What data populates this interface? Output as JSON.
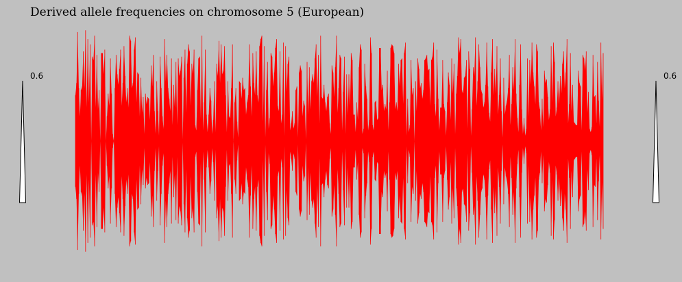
{
  "title": "Derived allele frequencies on chromosome 5 (European)",
  "scale_left_label": "0.6",
  "scale_right_label": "0.6",
  "colors": {
    "background": "#c0c0c0",
    "fill": "#ff0000",
    "scale_fill": "#ffffff"
  },
  "chart_data": {
    "type": "area",
    "title": "Derived allele frequencies on chromosome 5 (European)",
    "ylim": [
      0,
      0.6
    ],
    "symmetric": true,
    "scale_marker_value": 0.6,
    "series": [
      {
        "values": [
          0.26,
          0.33,
          0.62,
          0.3,
          0.14,
          0.29,
          0.31,
          0.51,
          0.3,
          0.63,
          0.19,
          0.58,
          0.22,
          0.55,
          0.0,
          0.48,
          0.46,
          0.6,
          0.19,
          0.49,
          0.18,
          0.29,
          0.0,
          0.5,
          0.5,
          0.38,
          0.52,
          0.0,
          0.14,
          0.27,
          0.2,
          0.47,
          0.27,
          0.04,
          0.0,
          0.3,
          0.49,
          0.38,
          0.32,
          0.41,
          0.52,
          0.2,
          0.33,
          0.54,
          0.37,
          0.22,
          0.3,
          0.19,
          0.6,
          0.57,
          0.3,
          0.33,
          0.52,
          0.59,
          0.22,
          0.39,
          0.38,
          0.14,
          0.36,
          0.16,
          0.25,
          0.04,
          0.27,
          0.21,
          0.25,
          0.24,
          0.12,
          0.43,
          0.31,
          0.49,
          0.17,
          0.04,
          0.34,
          0.17,
          0.03,
          0.48,
          0.3,
          0.14,
          0.07,
          0.58,
          0.34,
          0.49,
          0.3,
          0.24,
          0.17,
          0.47,
          0.09,
          0.32,
          0.19,
          0.45,
          0.09,
          0.47,
          0.37,
          0.4,
          0.48,
          0.01,
          0.36,
          0.52,
          0.16,
          0.44,
          0.55,
          0.51,
          0.2,
          0.44,
          0.38,
          0.52,
          0.09,
          0.06,
          0.29,
          0.47,
          0.48,
          0.12,
          0.6,
          0.06,
          0.22,
          0.52,
          0.15,
          0.05,
          0.15,
          0.3,
          0.23,
          0.04,
          0.12,
          0.34,
          0.05,
          0.44,
          0.37,
          0.57,
          0.33,
          0.55,
          0.38,
          0.4,
          0.54,
          0.26,
          0.05,
          0.34,
          0.14,
          0.13,
          0.3,
          0.55,
          0.0,
          0.22,
          0.3,
          0.11,
          0.02,
          0.34,
          0.33,
          0.24,
          0.36,
          0.29,
          0.3,
          0.15,
          0.22,
          0.26,
          0.55,
          0.31,
          0.14,
          0.5,
          0.33,
          0.26,
          0.51,
          0.26,
          0.22,
          0.54,
          0.58,
          0.6,
          0.11,
          0.54,
          0.02,
          0.29,
          0.45,
          0.07,
          0.13,
          0.5,
          0.48,
          0.31,
          0.39,
          0.53,
          0.58,
          0.2,
          0.17,
          0.51,
          0.1,
          0.15,
          0.56,
          0.03,
          0.54,
          0.28,
          0.44,
          0.48,
          0.06,
          0.1,
          0.17,
          0.07,
          0.1,
          0.29,
          0.31,
          0.02,
          0.39,
          0.43,
          0.4,
          0.14,
          0.23,
          0.2,
          0.01,
          0.45,
          0.15,
          0.42,
          0.18,
          0.34,
          0.38,
          0.33,
          0.47,
          0.55,
          0.25,
          0.49,
          0.1,
          0.6,
          0.25,
          0.24,
          0.32,
          0.22,
          0.17,
          0.25,
          0.27,
          0.1,
          0.04,
          0.43,
          0.39,
          0.25,
          0.42,
          0.6,
          0.16,
          0.3,
          0.49,
          0.47,
          0.06,
          0.28,
          0.48,
          0.04,
          0.38,
          0.15,
          0.38,
          0.2,
          0.5,
          0.46,
          0.15,
          0.15,
          0.05,
          0.22,
          0.12,
          0.42,
          0.55,
          0.52,
          0.04,
          0.07,
          0.44,
          0.31,
          0.24,
          0.06,
          0.12,
          0.59,
          0.5,
          0.09,
          0.06,
          0.22,
          0.23,
          0.12,
          0.13,
          0.53,
          0.53,
          0.29,
          0.32,
          0.17,
          0.21,
          0.18,
          0.4,
          0.06,
          0.22,
          0.53,
          0.55,
          0.54,
          0.5,
          0.18,
          0.22,
          0.17,
          0.44,
          0.31,
          0.46,
          0.47,
          0.21,
          0.5,
          0.56,
          0.03,
          0.24,
          0.05,
          0.09,
          0.46,
          0.26,
          0.3,
          0.0,
          0.34,
          0.17,
          0.47,
          0.41,
          0.3,
          0.33,
          0.24,
          0.29,
          0.46,
          0.47,
          0.49,
          0.4,
          0.41,
          0.2,
          0.46,
          0.48,
          0.56,
          0.21,
          0.14,
          0.52,
          0.24,
          0.06,
          0.19,
          0.19,
          0.46,
          0.21,
          0.17,
          0.03,
          0.22,
          0.39,
          0.32,
          0.12,
          0.47,
          0.27,
          0.44,
          0.04,
          0.27,
          0.37,
          0.59,
          0.5,
          0.58,
          0.29,
          0.27,
          0.36,
          0.37,
          0.46,
          0.07,
          0.51,
          0.41,
          0.03,
          0.18,
          0.42,
          0.37,
          0.59,
          0.2,
          0.34,
          0.55,
          0.42,
          0.29,
          0.27,
          0.19,
          0.22,
          0.32,
          0.56,
          0.31,
          0.16,
          0.11,
          0.39,
          0.58,
          0.26,
          0.41,
          0.27,
          0.54,
          0.15,
          0.26,
          0.47,
          0.17,
          0.02,
          0.36,
          0.15,
          0.2,
          0.23,
          0.3,
          0.49,
          0.09,
          0.21,
          0.42,
          0.29,
          0.58,
          0.27,
          0.13,
          0.05,
          0.32,
          0.55,
          0.18,
          0.04,
          0.13,
          0.03,
          0.07,
          0.47,
          0.14,
          0.46,
          0.32,
          0.56,
          0.39,
          0.31,
          0.21,
          0.55,
          0.51,
          0.22,
          0.18,
          0.06,
          0.24,
          0.08,
          0.4,
          0.33,
          0.35,
          0.25,
          0.12,
          0.18,
          0.54,
          0.22,
          0.56,
          0.45,
          0.14,
          0.19,
          0.34,
          0.21,
          0.37,
          0.27,
          0.44,
          0.51,
          0.3,
          0.39,
          0.58,
          0.1,
          0.21,
          0.5,
          0.17,
          0.32,
          0.11,
          0.1,
          0.09,
          0.09,
          0.4,
          0.33,
          0.31,
          0.06,
          0.49,
          0.47,
          0.4,
          0.51,
          0.16,
          0.28,
          0.07,
          0.05,
          0.08,
          0.49,
          0.25,
          0.26,
          0.1,
          0.45,
          0.23,
          0.08,
          0.56,
          0.23,
          0.5
        ]
      }
    ]
  }
}
